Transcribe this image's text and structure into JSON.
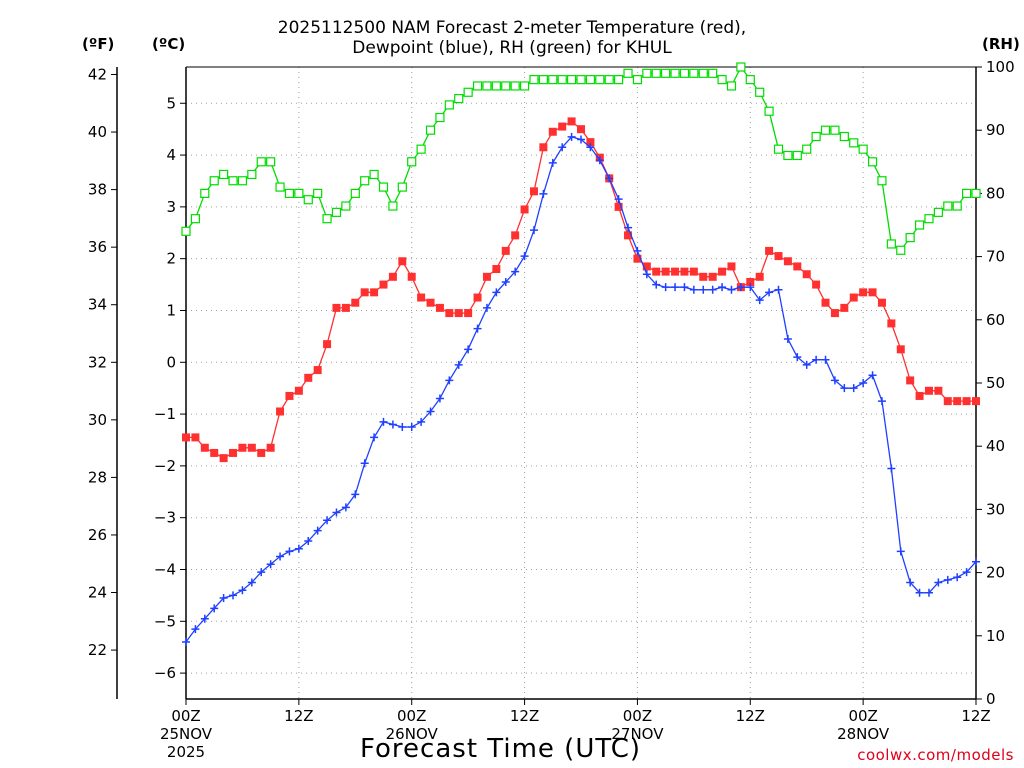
{
  "title": {
    "line1": "2025112500 NAM Forecast 2-meter Temperature (red),",
    "line2": "Dewpoint (blue), RH (green) for KHUL"
  },
  "axis_units": {
    "fahrenheit": "(ºF)",
    "celsius": "(ºC)",
    "rh": "(RH)"
  },
  "xlabel": "Forecast Time (UTC)",
  "credit": "coolwx.com/models",
  "chart_data": {
    "type": "line",
    "title": "2025112500 NAM Forecast 2-meter Temperature (red), Dewpoint (blue), RH (green) for KHUL",
    "xlabel": "Forecast Time (UTC)",
    "x_unit": "forecast hour",
    "xlim": [
      0,
      84
    ],
    "x_ticks": [
      {
        "hour": 0,
        "label": "00Z",
        "date": "25NOV",
        "year": "2025"
      },
      {
        "hour": 12,
        "label": "12Z"
      },
      {
        "hour": 24,
        "label": "00Z",
        "date": "26NOV"
      },
      {
        "hour": 36,
        "label": "12Z"
      },
      {
        "hour": 48,
        "label": "00Z",
        "date": "27NOV"
      },
      {
        "hour": 60,
        "label": "12Z"
      },
      {
        "hour": 72,
        "label": "00Z",
        "date": "28NOV"
      },
      {
        "hour": 84,
        "label": "12Z"
      }
    ],
    "ylabel_left": "(ºF)",
    "ylabel_celsius": "(ºC)",
    "ylabel_right": "(RH)",
    "ylim_celsius": [
      -6.5,
      5.7
    ],
    "yticks_celsius": [
      -6,
      -5,
      -4,
      -3,
      -2,
      -1,
      0,
      1,
      2,
      3,
      4,
      5
    ],
    "yticks_fahrenheit": [
      22,
      24,
      26,
      28,
      30,
      32,
      34,
      36,
      38,
      40,
      42
    ],
    "ylim_rh": [
      0,
      100
    ],
    "yticks_rh": [
      0,
      10,
      20,
      30,
      40,
      50,
      60,
      70,
      80,
      90,
      100
    ],
    "grid": true,
    "x": [
      0,
      1,
      2,
      3,
      4,
      5,
      6,
      7,
      8,
      9,
      10,
      11,
      12,
      13,
      14,
      15,
      16,
      17,
      18,
      19,
      20,
      21,
      22,
      23,
      24,
      25,
      26,
      27,
      28,
      29,
      30,
      31,
      32,
      33,
      34,
      35,
      36,
      37,
      38,
      39,
      40,
      41,
      42,
      43,
      44,
      45,
      46,
      47,
      48,
      49,
      50,
      51,
      52,
      53,
      54,
      55,
      56,
      57,
      58,
      59,
      60,
      61,
      62,
      63,
      64,
      65,
      66,
      67,
      68,
      69,
      70,
      71,
      72,
      73,
      74,
      75,
      76,
      77,
      78,
      79,
      80,
      81,
      82,
      83,
      84
    ],
    "series": [
      {
        "name": "Temperature",
        "axis": "celsius",
        "color": "#ff3030",
        "marker": "filled-square",
        "values": [
          -1.45,
          -1.45,
          -1.65,
          -1.75,
          -1.85,
          -1.75,
          -1.65,
          -1.65,
          -1.75,
          -1.65,
          -0.95,
          -0.65,
          -0.55,
          -0.3,
          -0.15,
          0.35,
          1.05,
          1.05,
          1.15,
          1.35,
          1.35,
          1.5,
          1.65,
          1.95,
          1.65,
          1.25,
          1.15,
          1.05,
          0.95,
          0.95,
          0.95,
          1.25,
          1.65,
          1.8,
          2.15,
          2.45,
          2.95,
          3.3,
          4.15,
          4.45,
          4.55,
          4.65,
          4.5,
          4.25,
          3.95,
          3.55,
          3.0,
          2.45,
          2.0,
          1.85,
          1.75,
          1.75,
          1.75,
          1.75,
          1.75,
          1.65,
          1.65,
          1.75,
          1.85,
          1.45,
          1.55,
          1.65,
          2.15,
          2.05,
          1.95,
          1.85,
          1.7,
          1.5,
          1.15,
          0.95,
          1.05,
          1.25,
          1.35,
          1.35,
          1.15,
          0.75,
          0.25,
          -0.35,
          -0.65,
          -0.55,
          -0.55,
          -0.75,
          -0.75,
          -0.75,
          -0.75
        ]
      },
      {
        "name": "Dewpoint",
        "axis": "celsius",
        "color": "#2040ff",
        "marker": "plus",
        "values": [
          -5.4,
          -5.15,
          -4.95,
          -4.75,
          -4.55,
          -4.5,
          -4.4,
          -4.25,
          -4.05,
          -3.9,
          -3.75,
          -3.65,
          -3.6,
          -3.45,
          -3.25,
          -3.05,
          -2.9,
          -2.8,
          -2.55,
          -1.95,
          -1.45,
          -1.15,
          -1.2,
          -1.25,
          -1.25,
          -1.15,
          -0.95,
          -0.7,
          -0.35,
          -0.05,
          0.25,
          0.65,
          1.05,
          1.35,
          1.55,
          1.75,
          2.05,
          2.55,
          3.25,
          3.85,
          4.15,
          4.35,
          4.3,
          4.15,
          3.9,
          3.55,
          3.15,
          2.6,
          2.15,
          1.7,
          1.5,
          1.45,
          1.45,
          1.45,
          1.4,
          1.4,
          1.4,
          1.45,
          1.4,
          1.45,
          1.45,
          1.2,
          1.35,
          1.4,
          0.45,
          0.1,
          -0.05,
          0.05,
          0.05,
          -0.35,
          -0.5,
          -0.5,
          -0.4,
          -0.25,
          -0.75,
          -2.05,
          -3.65,
          -4.25,
          -4.45,
          -4.45,
          -4.25,
          -4.2,
          -4.15,
          -4.05,
          -3.85
        ]
      },
      {
        "name": "RH",
        "axis": "rh",
        "color": "#00dd00",
        "marker": "open-square",
        "values": [
          74,
          76,
          80,
          82,
          83,
          82,
          82,
          83,
          85,
          85,
          81,
          80,
          80,
          79,
          80,
          76,
          77,
          78,
          80,
          82,
          83,
          81,
          78,
          81,
          85,
          87,
          90,
          92,
          94,
          95,
          96,
          97,
          97,
          97,
          97,
          97,
          97,
          98,
          98,
          98,
          98,
          98,
          98,
          98,
          98,
          98,
          98,
          99,
          98,
          99,
          99,
          99,
          99,
          99,
          99,
          99,
          99,
          98,
          97,
          100,
          98,
          96,
          93,
          87,
          86,
          86,
          87,
          89,
          90,
          90,
          89,
          88,
          87,
          85,
          82,
          72,
          71,
          73,
          75,
          76,
          77,
          78,
          78,
          80,
          80
        ]
      }
    ]
  }
}
